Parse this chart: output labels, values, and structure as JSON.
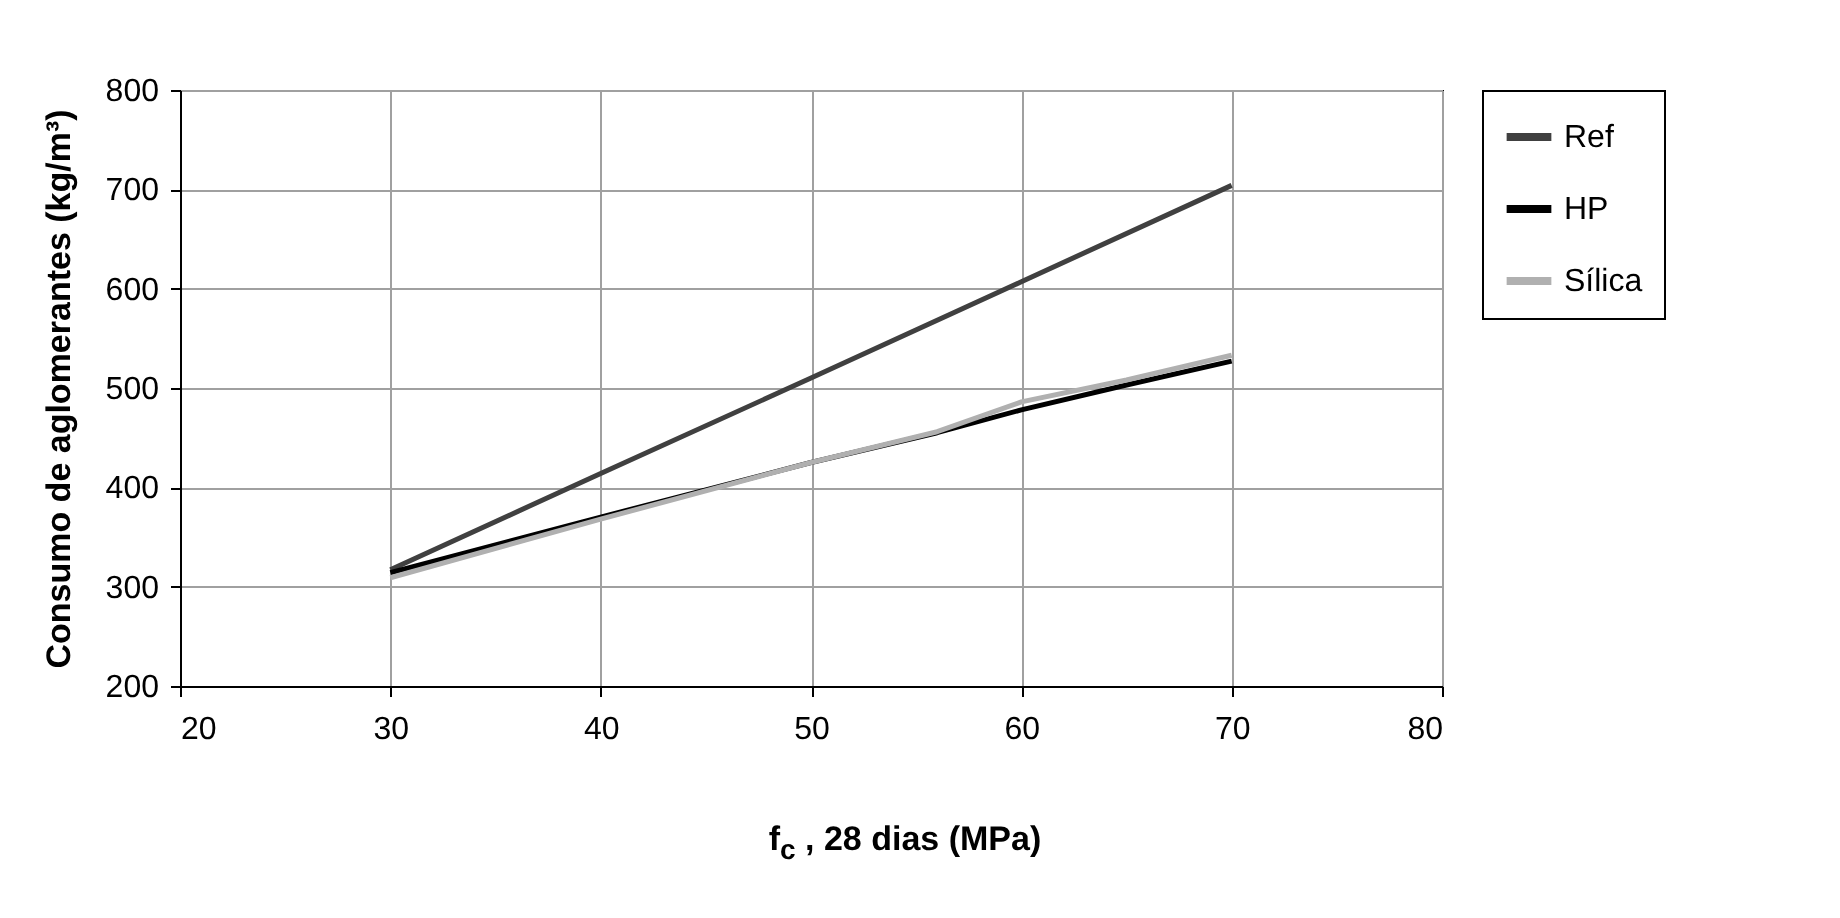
{
  "chart_data": {
    "type": "line",
    "xlabel": "f$_{c}$ , 28 dias  (MPa)",
    "ylabel": "Consumo de aglomerantes (kg/m³)",
    "xlim": [
      20,
      80
    ],
    "xticks": [
      20,
      30,
      40,
      50,
      60,
      70,
      80
    ],
    "ylim": [
      200,
      800
    ],
    "yticks": [
      200,
      300,
      400,
      500,
      600,
      700,
      800
    ],
    "grid": true,
    "legend": "right",
    "marker": "none",
    "line_style": "solid",
    "series": [
      {
        "name": "Ref",
        "color": "#404040",
        "x": [
          30,
          40,
          50,
          60,
          70
        ],
        "values": [
          317,
          414,
          510,
          607,
          704
        ]
      },
      {
        "name": "HP",
        "color": "#000000",
        "x": [
          30,
          40,
          50,
          56,
          60,
          65,
          70
        ],
        "values": [
          314,
          370,
          425,
          455,
          478,
          503,
          527
        ]
      },
      {
        "name": "Sílica",
        "color": "#b0b0b0",
        "x": [
          30,
          40,
          50,
          56,
          60,
          65,
          70
        ],
        "values": [
          309,
          368,
          425,
          456,
          486,
          508,
          533
        ]
      }
    ]
  }
}
